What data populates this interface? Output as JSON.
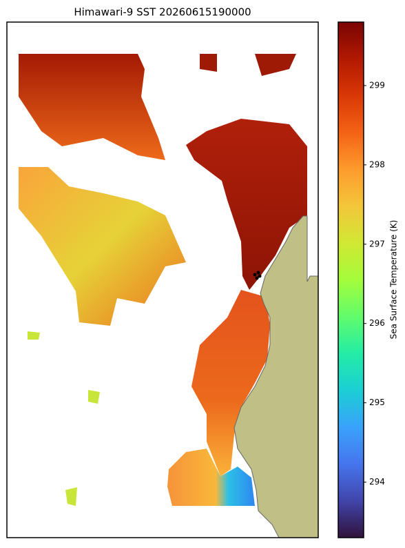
{
  "title": "Himawari-9 SST 20260615190000",
  "colorbar": {
    "label": "Sea Surface Temperature (K)",
    "colormap": "turbo",
    "lim": [
      293.3,
      299.8
    ],
    "ticks": [
      294,
      295,
      296,
      297,
      298,
      299
    ]
  }
}
